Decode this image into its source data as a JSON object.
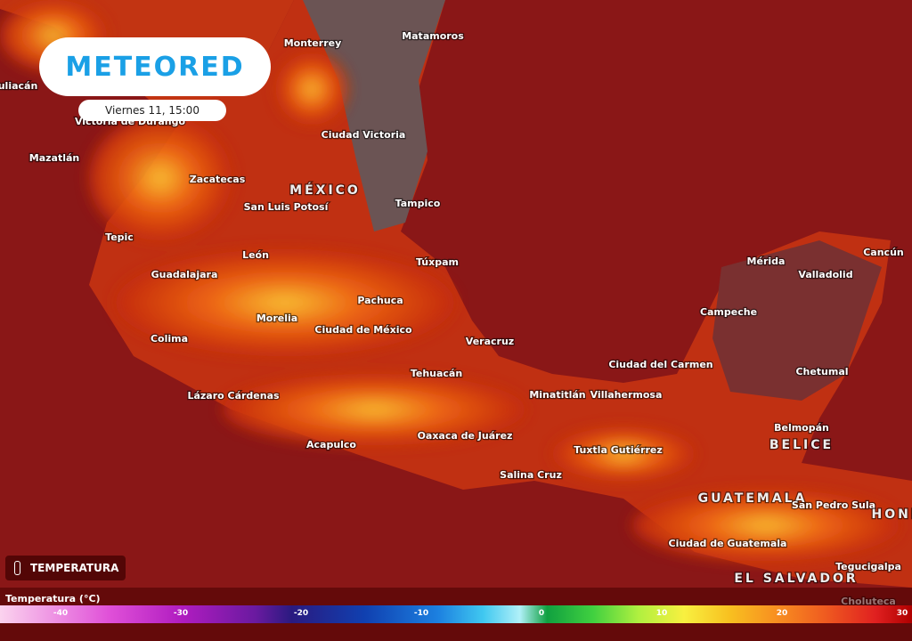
{
  "header": {
    "logo": "METEORED",
    "datetime": "Viernes 11, 15:00"
  },
  "layer": {
    "name": "TEMPERATURA"
  },
  "legend": {
    "title": "Temperatura (°C)",
    "ticks": [
      -40,
      -30,
      -20,
      -10,
      0,
      10,
      20,
      30
    ]
  },
  "places": [
    "Monterrey",
    "Matamoros",
    "uliacán",
    "Victoria de Durango",
    "Mazatlán",
    "Ciudad Victoria",
    "MÉXICO",
    "Zacatecas",
    "San Luis Potosí",
    "Tampico",
    "Tepic",
    "León",
    "Túxpam",
    "Guadalajara",
    "Pachuca",
    "Morelia",
    "Ciudad de México",
    "Veracruz",
    "Colima",
    "Tehuacán",
    "Lázaro Cárdenas",
    "Minatitlán",
    "Villahermosa",
    "Ciudad del Carmen",
    "Campeche",
    "Mérida",
    "Valladolid",
    "Cancún",
    "Chetumal",
    "Belmopán",
    "BELICE",
    "Acapulco",
    "Oaxaca de Juárez",
    "Tuxtla Gutiérrez",
    "Salina Cruz",
    "GUATEMALA",
    "San Pedro Sula",
    "HOND",
    "Ciudad de Guatemala",
    "Tegucigalpa",
    "EL SALVADOR",
    "Choluteca"
  ]
}
